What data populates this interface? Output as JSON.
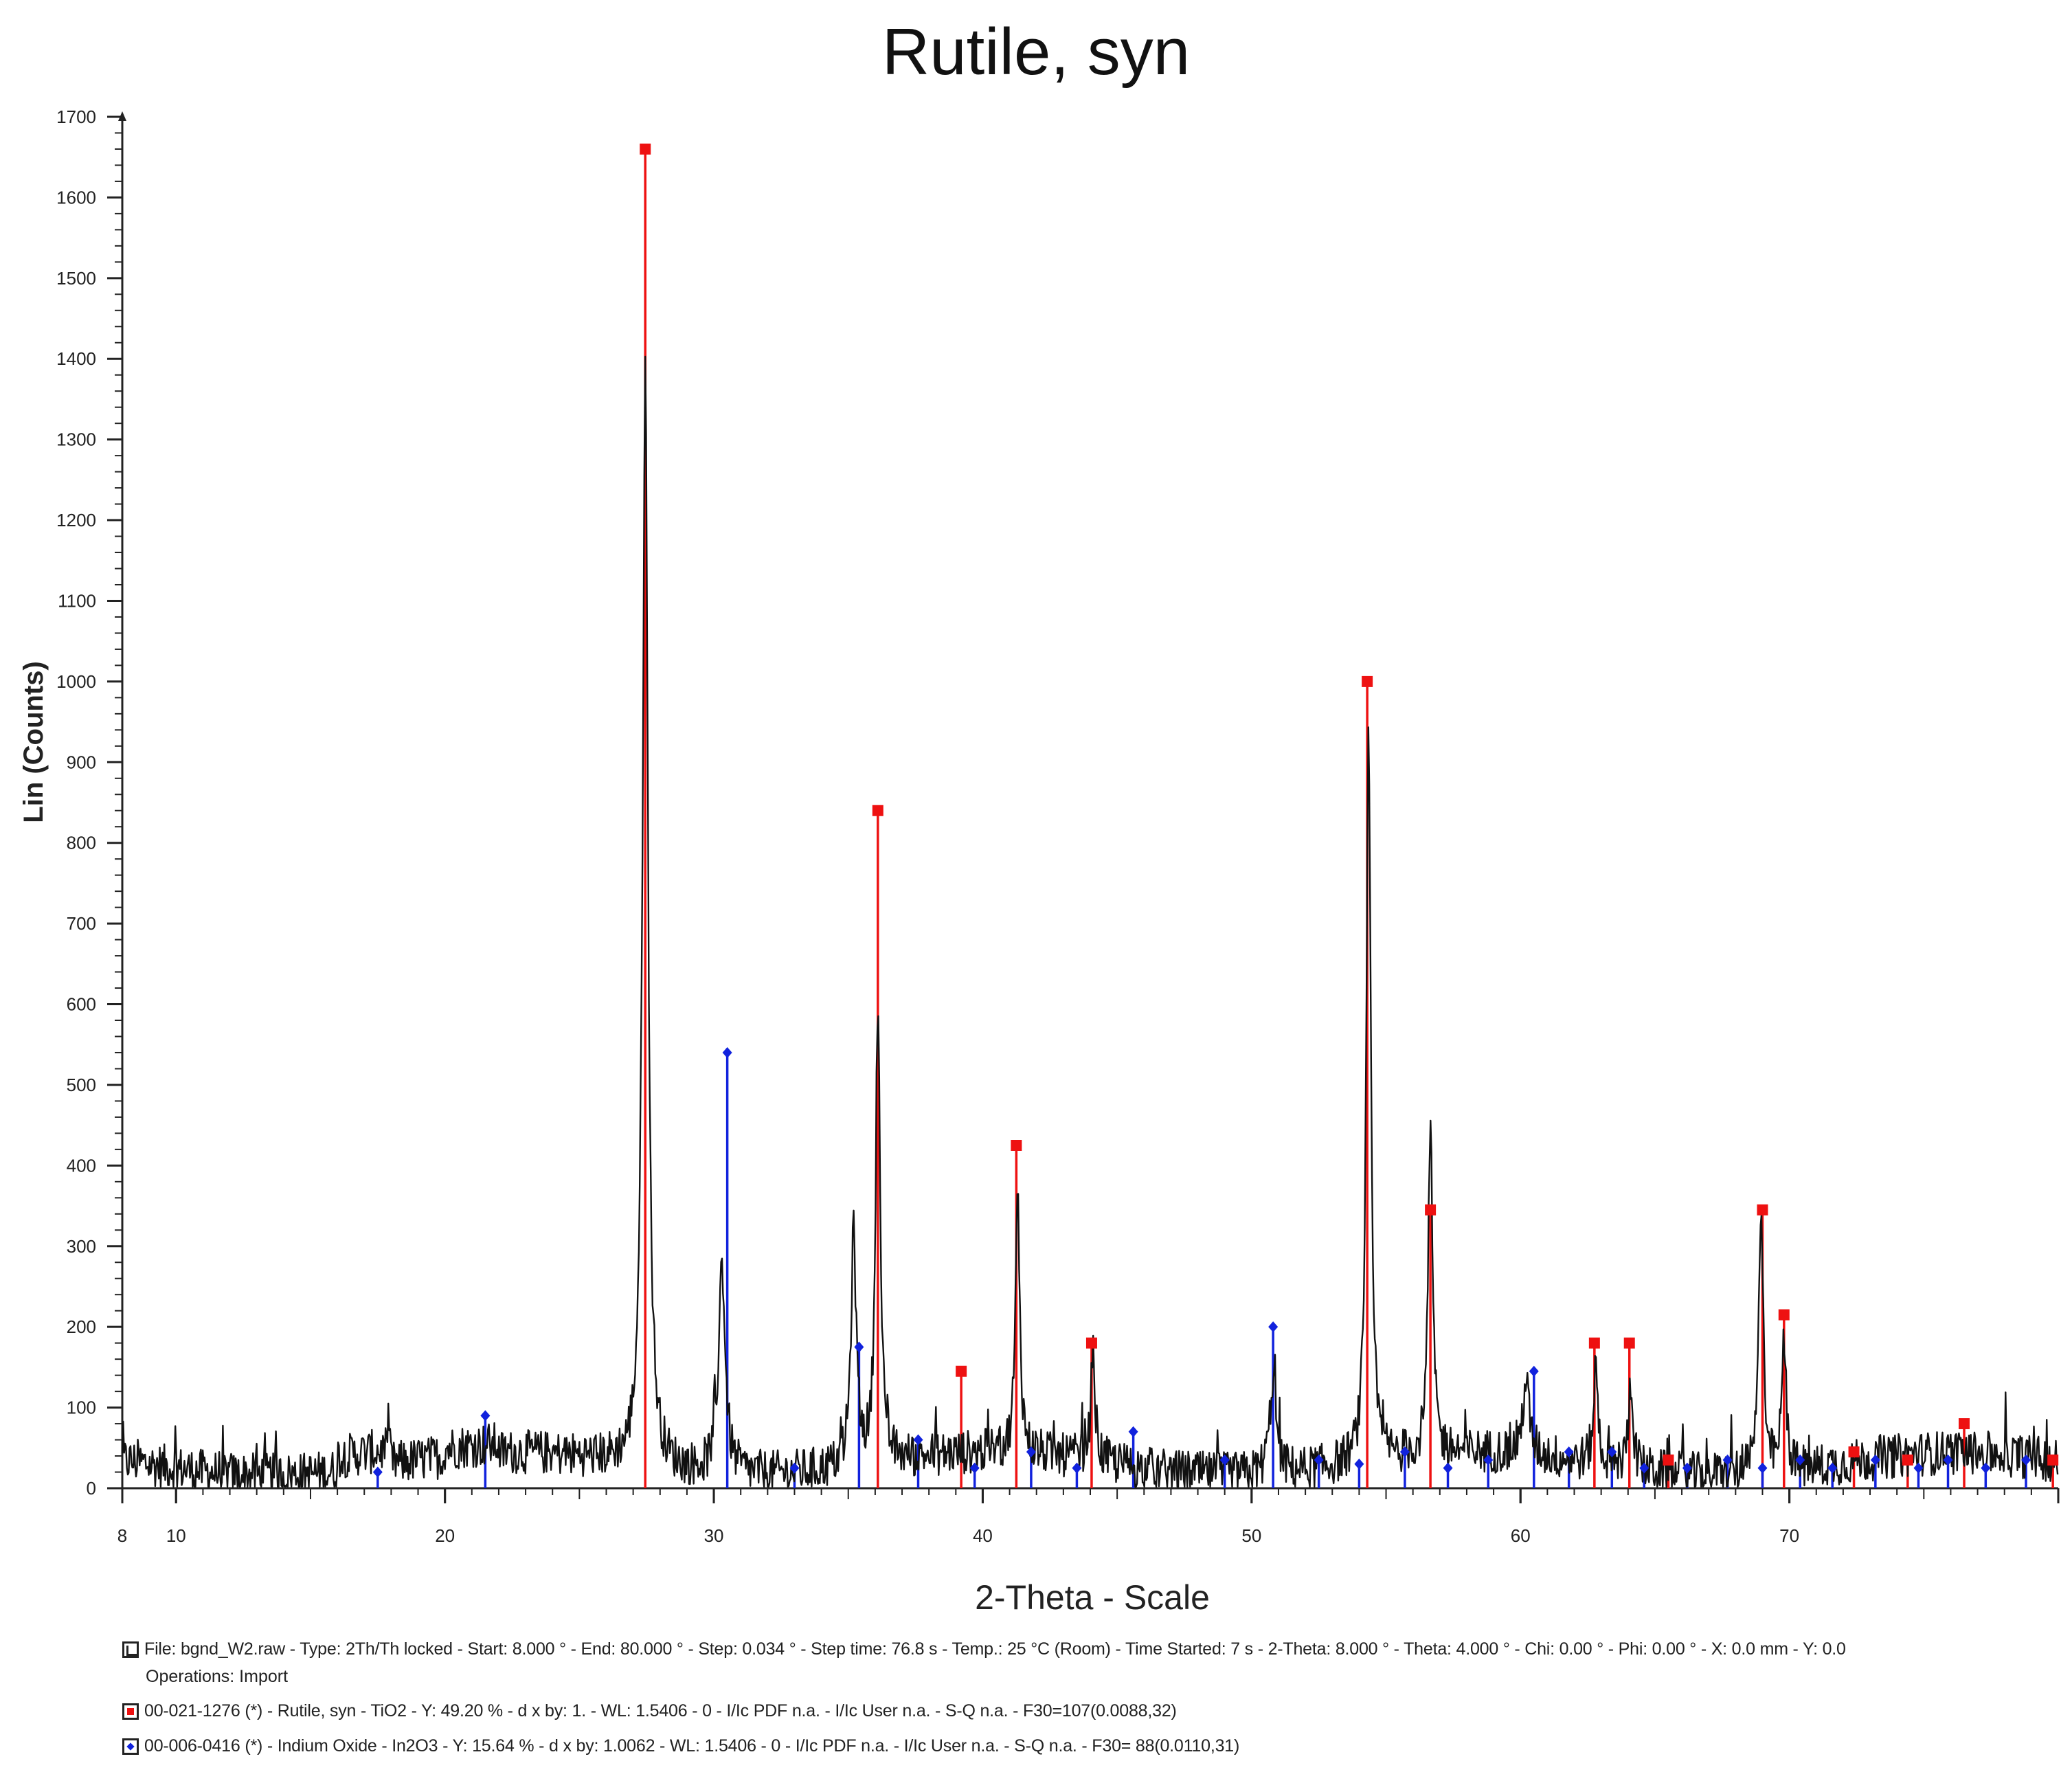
{
  "chart_data": {
    "type": "line",
    "title": "Rutile, syn",
    "xlabel": "2-Theta - Scale",
    "ylabel": "Lin (Counts)",
    "xlim": [
      8,
      80
    ],
    "ylim": [
      0,
      1700
    ],
    "x_ticks": [
      8,
      10,
      20,
      30,
      40,
      50,
      60,
      70
    ],
    "y_ticks": [
      0,
      100,
      200,
      300,
      400,
      500,
      600,
      700,
      800,
      900,
      1000,
      1100,
      1200,
      1300,
      1400,
      1500,
      1600,
      1700
    ],
    "grid": false,
    "measured_peaks": [
      {
        "x": 27.45,
        "y": 1360,
        "w": 0.12
      },
      {
        "x": 30.3,
        "y": 260,
        "w": 0.15
      },
      {
        "x": 35.2,
        "y": 285,
        "w": 0.12
      },
      {
        "x": 36.1,
        "y": 575,
        "w": 0.1
      },
      {
        "x": 41.3,
        "y": 315,
        "w": 0.1
      },
      {
        "x": 44.1,
        "y": 130,
        "w": 0.1
      },
      {
        "x": 50.8,
        "y": 120,
        "w": 0.15
      },
      {
        "x": 54.35,
        "y": 890,
        "w": 0.1
      },
      {
        "x": 56.65,
        "y": 400,
        "w": 0.1
      },
      {
        "x": 60.2,
        "y": 90,
        "w": 0.15
      },
      {
        "x": 62.8,
        "y": 120,
        "w": 0.1
      },
      {
        "x": 64.1,
        "y": 110,
        "w": 0.1
      },
      {
        "x": 68.95,
        "y": 340,
        "w": 0.1
      },
      {
        "x": 69.8,
        "y": 160,
        "w": 0.1
      }
    ],
    "series": [
      {
        "name": "00-021-1276 (*) - Rutile, syn - TiO2",
        "color": "#ee1111",
        "marker": "square",
        "sticks": [
          {
            "x": 27.45,
            "y": 1660
          },
          {
            "x": 36.1,
            "y": 840
          },
          {
            "x": 39.2,
            "y": 145
          },
          {
            "x": 41.25,
            "y": 425
          },
          {
            "x": 44.05,
            "y": 180
          },
          {
            "x": 54.3,
            "y": 1000
          },
          {
            "x": 56.65,
            "y": 345
          },
          {
            "x": 62.75,
            "y": 180
          },
          {
            "x": 64.05,
            "y": 180
          },
          {
            "x": 65.5,
            "y": 35
          },
          {
            "x": 69.0,
            "y": 345
          },
          {
            "x": 69.8,
            "y": 215
          },
          {
            "x": 72.4,
            "y": 45
          },
          {
            "x": 74.4,
            "y": 35
          },
          {
            "x": 76.5,
            "y": 80
          },
          {
            "x": 79.8,
            "y": 35
          }
        ]
      },
      {
        "name": "00-006-0416 (*) - Indium Oxide - In2O3",
        "color": "#1122dd",
        "marker": "diamond",
        "sticks": [
          {
            "x": 17.5,
            "y": 20
          },
          {
            "x": 21.5,
            "y": 90
          },
          {
            "x": 30.5,
            "y": 540
          },
          {
            "x": 33.0,
            "y": 25
          },
          {
            "x": 35.4,
            "y": 175
          },
          {
            "x": 37.6,
            "y": 60
          },
          {
            "x": 39.7,
            "y": 25
          },
          {
            "x": 41.8,
            "y": 45
          },
          {
            "x": 43.5,
            "y": 25
          },
          {
            "x": 45.6,
            "y": 70
          },
          {
            "x": 49.0,
            "y": 35
          },
          {
            "x": 50.8,
            "y": 200
          },
          {
            "x": 52.5,
            "y": 35
          },
          {
            "x": 54.0,
            "y": 30
          },
          {
            "x": 55.7,
            "y": 45
          },
          {
            "x": 57.3,
            "y": 25
          },
          {
            "x": 58.8,
            "y": 35
          },
          {
            "x": 60.5,
            "y": 145
          },
          {
            "x": 61.8,
            "y": 45
          },
          {
            "x": 63.4,
            "y": 45
          },
          {
            "x": 64.6,
            "y": 25
          },
          {
            "x": 66.2,
            "y": 25
          },
          {
            "x": 67.7,
            "y": 35
          },
          {
            "x": 69.0,
            "y": 25
          },
          {
            "x": 70.4,
            "y": 35
          },
          {
            "x": 71.6,
            "y": 25
          },
          {
            "x": 73.2,
            "y": 35
          },
          {
            "x": 74.8,
            "y": 25
          },
          {
            "x": 75.9,
            "y": 35
          },
          {
            "x": 77.3,
            "y": 25
          },
          {
            "x": 78.8,
            "y": 35
          }
        ]
      }
    ]
  },
  "legend": {
    "raw_line": "File: bgnd_W2.raw - Type: 2Th/Th locked - Start: 8.000 ° - End: 80.000 ° - Step: 0.034 ° - Step time: 76.8 s - Temp.: 25 °C (Room) - Time Started: 7 s - 2-Theta: 8.000 ° - Theta: 4.000 ° - Chi: 0.00 ° - Phi: 0.00 ° - X: 0.0 mm - Y: 0.0",
    "raw_ops": "Operations: Import",
    "rutile_line": "00-021-1276 (*) - Rutile, syn - TiO2 - Y: 49.20 % - d x by: 1. - WL: 1.5406 - 0 - I/Ic PDF n.a. - I/Ic User n.a. - S-Q n.a. - F30=107(0.0088,32)",
    "indium_line": "00-006-0416 (*) - Indium Oxide - In2O3 - Y: 15.64 % - d x by: 1.0062 - WL: 1.5406 - 0 - I/Ic PDF n.a. - I/Ic User n.a. - S-Q n.a. - F30= 88(0.0110,31)"
  }
}
